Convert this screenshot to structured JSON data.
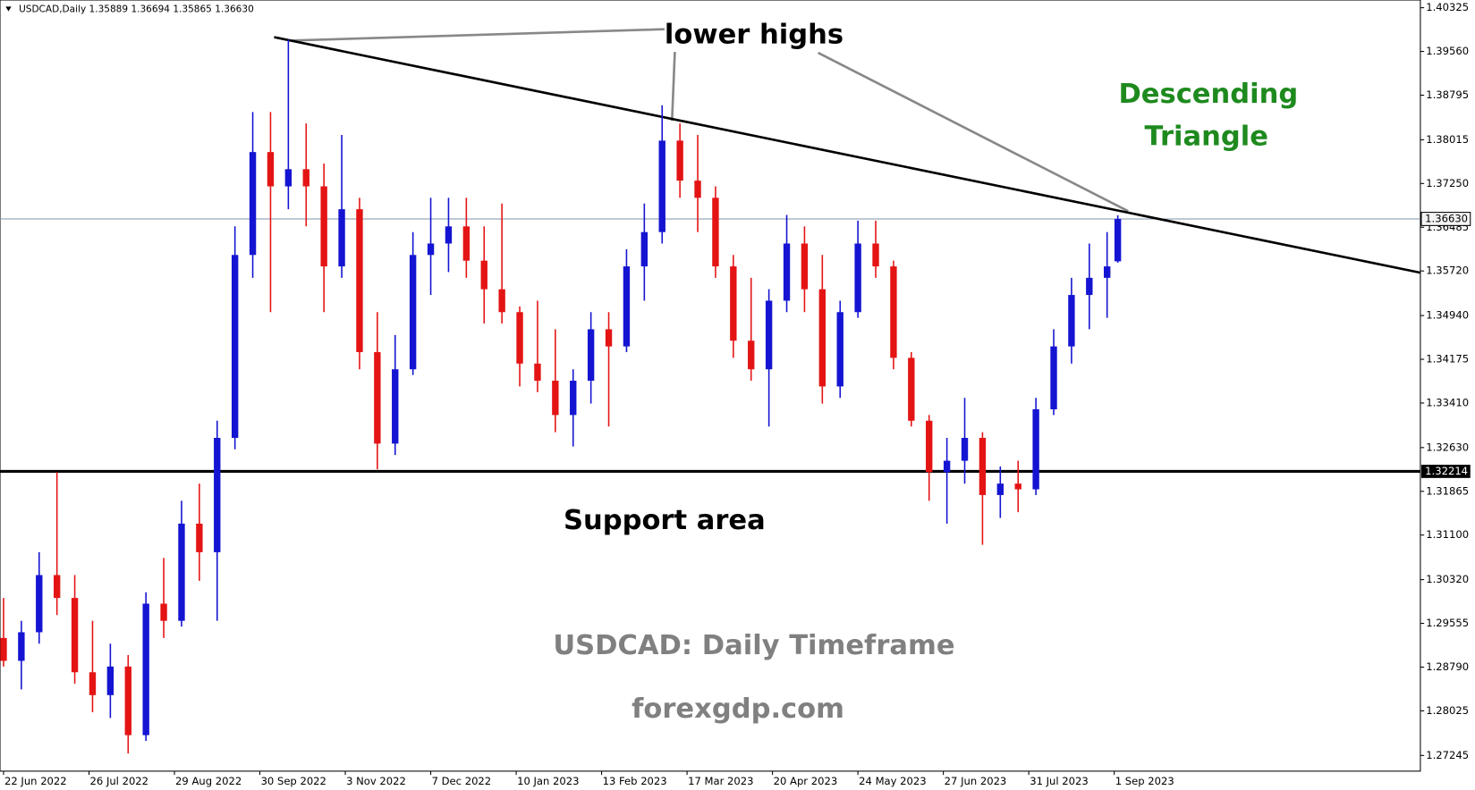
{
  "chart_data": {
    "type": "candlestick",
    "symbol": "USDCAD,Daily",
    "header_values": [
      "1.35889",
      "1.36694",
      "1.35865",
      "1.36630"
    ],
    "up_color": "#1414d2",
    "down_color": "#e41414",
    "x": [
      0,
      5,
      10,
      15,
      20,
      25,
      30,
      35,
      40,
      45,
      50,
      55,
      60,
      65,
      70,
      75,
      80,
      85,
      90,
      95,
      100,
      105,
      110,
      115,
      120,
      125,
      130,
      135,
      140,
      145,
      150,
      155,
      160,
      165,
      170,
      175,
      180,
      185,
      190,
      195,
      200,
      205,
      210,
      215,
      220,
      225,
      230,
      235,
      240,
      245,
      250,
      255,
      260,
      265,
      270,
      275,
      280,
      285,
      290,
      295,
      300,
      305,
      310,
      313
    ],
    "open": [
      1.293,
      1.289,
      1.294,
      1.304,
      1.3,
      1.287,
      1.283,
      1.288,
      1.276,
      1.299,
      1.296,
      1.313,
      1.308,
      1.328,
      1.36,
      1.378,
      1.372,
      1.375,
      1.372,
      1.358,
      1.368,
      1.343,
      1.327,
      1.34,
      1.36,
      1.362,
      1.365,
      1.359,
      1.354,
      1.35,
      1.341,
      1.338,
      1.332,
      1.338,
      1.347,
      1.344,
      1.358,
      1.364,
      1.38,
      1.373,
      1.37,
      1.358,
      1.345,
      1.34,
      1.352,
      1.362,
      1.354,
      1.337,
      1.35,
      1.362,
      1.358,
      1.342,
      1.331,
      1.322,
      1.324,
      1.328,
      1.318,
      1.32,
      1.319,
      1.333,
      1.344,
      1.353,
      1.356,
      1.35889
    ],
    "high": [
      1.3,
      1.296,
      1.308,
      1.322,
      1.304,
      1.296,
      1.292,
      1.29,
      1.301,
      1.307,
      1.317,
      1.32,
      1.331,
      1.365,
      1.385,
      1.385,
      1.3977,
      1.383,
      1.376,
      1.381,
      1.37,
      1.35,
      1.346,
      1.364,
      1.37,
      1.37,
      1.37,
      1.365,
      1.369,
      1.351,
      1.352,
      1.347,
      1.34,
      1.35,
      1.35,
      1.361,
      1.369,
      1.3862,
      1.383,
      1.381,
      1.372,
      1.36,
      1.356,
      1.354,
      1.367,
      1.365,
      1.36,
      1.352,
      1.366,
      1.366,
      1.359,
      1.343,
      1.332,
      1.328,
      1.335,
      1.329,
      1.323,
      1.324,
      1.335,
      1.347,
      1.356,
      1.362,
      1.364,
      1.36694
    ],
    "low": [
      1.288,
      1.284,
      1.292,
      1.297,
      1.285,
      1.28,
      1.279,
      1.2728,
      1.275,
      1.293,
      1.295,
      1.303,
      1.296,
      1.326,
      1.356,
      1.35,
      1.368,
      1.365,
      1.35,
      1.356,
      1.34,
      1.3225,
      1.325,
      1.339,
      1.353,
      1.357,
      1.356,
      1.348,
      1.348,
      1.337,
      1.336,
      1.329,
      1.3265,
      1.334,
      1.33,
      1.343,
      1.352,
      1.362,
      1.37,
      1.364,
      1.356,
      1.342,
      1.338,
      1.33,
      1.35,
      1.35,
      1.334,
      1.335,
      1.349,
      1.356,
      1.34,
      1.33,
      1.317,
      1.313,
      1.32,
      1.3093,
      1.314,
      1.315,
      1.318,
      1.332,
      1.341,
      1.347,
      1.349,
      1.35865
    ],
    "close": [
      1.289,
      1.294,
      1.304,
      1.3,
      1.287,
      1.283,
      1.288,
      1.276,
      1.299,
      1.296,
      1.313,
      1.308,
      1.328,
      1.36,
      1.378,
      1.372,
      1.375,
      1.372,
      1.358,
      1.368,
      1.343,
      1.327,
      1.34,
      1.36,
      1.362,
      1.365,
      1.359,
      1.354,
      1.35,
      1.341,
      1.338,
      1.332,
      1.338,
      1.347,
      1.344,
      1.358,
      1.364,
      1.38,
      1.373,
      1.37,
      1.358,
      1.345,
      1.34,
      1.352,
      1.362,
      1.354,
      1.337,
      1.35,
      1.362,
      1.358,
      1.342,
      1.331,
      1.322,
      1.324,
      1.328,
      1.318,
      1.32,
      1.319,
      1.333,
      1.344,
      1.353,
      1.356,
      1.358,
      1.3663
    ],
    "xlim": [
      -1,
      398
    ],
    "ylim": [
      1.2697,
      1.4046
    ],
    "xticks": [
      {
        "value": 0,
        "label": "22 Jun 2022"
      },
      {
        "value": 24,
        "label": "26 Jul 2022"
      },
      {
        "value": 48,
        "label": "29 Aug 2022"
      },
      {
        "value": 72,
        "label": "30 Sep 2022"
      },
      {
        "value": 96,
        "label": "3 Nov 2022"
      },
      {
        "value": 120,
        "label": "7 Dec 2022"
      },
      {
        "value": 144,
        "label": "10 Jan 2023"
      },
      {
        "value": 168,
        "label": "13 Feb 2023"
      },
      {
        "value": 192,
        "label": "17 Mar 2023"
      },
      {
        "value": 216,
        "label": "20 Apr 2023"
      },
      {
        "value": 240,
        "label": "24 May 2023"
      },
      {
        "value": 264,
        "label": "27 Jun 2023"
      },
      {
        "value": 288,
        "label": "31 Jul 2023"
      },
      {
        "value": 312,
        "label": "1 Sep 2023"
      }
    ],
    "yticks": [
      1.40325,
      {
        "value": 1.3956,
        "label": "1.39560"
      },
      1.38795,
      1.38015,
      {
        "value": 1.3725,
        "label": "1.37250"
      },
      1.36485,
      {
        "value": 1.3572,
        "label": "1.35720"
      },
      {
        "value": 1.3494,
        "label": "1.34940"
      },
      1.34175,
      {
        "value": 1.3341,
        "label": "1.33410"
      },
      {
        "value": 1.3263,
        "label": "1.32630"
      },
      1.31865,
      {
        "value": 1.311,
        "label": "1.31100"
      },
      {
        "value": 1.3032,
        "label": "1.30320"
      },
      1.29555,
      {
        "value": 1.2879,
        "label": "1.28790"
      },
      1.28025,
      1.27245
    ],
    "price_line": {
      "value": 1.3663,
      "label": "1.36630"
    },
    "support_line": {
      "value": 1.32214,
      "label": "1.32214"
    },
    "trendline": {
      "x": [
        76,
        398
      ],
      "y": [
        1.3981,
        1.3569
      ]
    },
    "annotations": {
      "lower_highs": "lower highs",
      "pattern": [
        "Descending",
        "Triangle"
      ],
      "support": "Support area",
      "caption": "USDCAD: Daily Timeframe",
      "site": "forexgdp.com"
    }
  }
}
